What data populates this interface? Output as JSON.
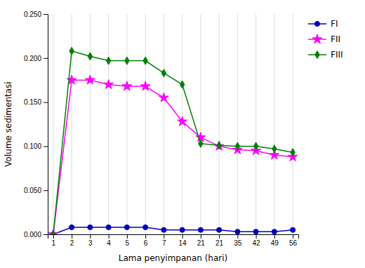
{
  "chart_data": {
    "type": "line",
    "xlabel": "Lama penyimpanan (hari)",
    "ylabel": "Volume sedimentasi",
    "categories": [
      "1",
      "2",
      "3",
      "4",
      "5",
      "6",
      "7",
      "14",
      "21",
      "21",
      "35",
      "42",
      "49",
      "56"
    ],
    "series": [
      {
        "name": "FI",
        "color": "#0000bb",
        "marker": "circle",
        "values": [
          0,
          0.008,
          0.008,
          0.008,
          0.008,
          0.008,
          0.005,
          0.005,
          0.005,
          0.005,
          0.003,
          0.003,
          0.003,
          0.005
        ]
      },
      {
        "name": "FII",
        "color": "#ff00ff",
        "marker": "star",
        "values": [
          0,
          0.175,
          0.175,
          0.17,
          0.168,
          0.168,
          0.155,
          0.128,
          0.11,
          0.1,
          0.096,
          0.095,
          0.09,
          0.088
        ]
      },
      {
        "name": "FIII",
        "color": "#008000",
        "marker": "diamond",
        "values": [
          0,
          0.208,
          0.202,
          0.197,
          0.197,
          0.197,
          0.183,
          0.17,
          0.103,
          0.101,
          0.1,
          0.1,
          0.097,
          0.093
        ]
      }
    ],
    "ylim": [
      0,
      0.25
    ],
    "yticks": [
      {
        "value": 0,
        "label": "0.000"
      },
      {
        "value": 0.05,
        "label": "0.050"
      },
      {
        "value": 0.1,
        "label": "0.100"
      },
      {
        "value": 0.15,
        "label": "0.150"
      },
      {
        "value": 0.2,
        "label": "0.200"
      },
      {
        "value": 0.25,
        "label": "0.250"
      }
    ],
    "grid": "x",
    "legend": "right"
  }
}
